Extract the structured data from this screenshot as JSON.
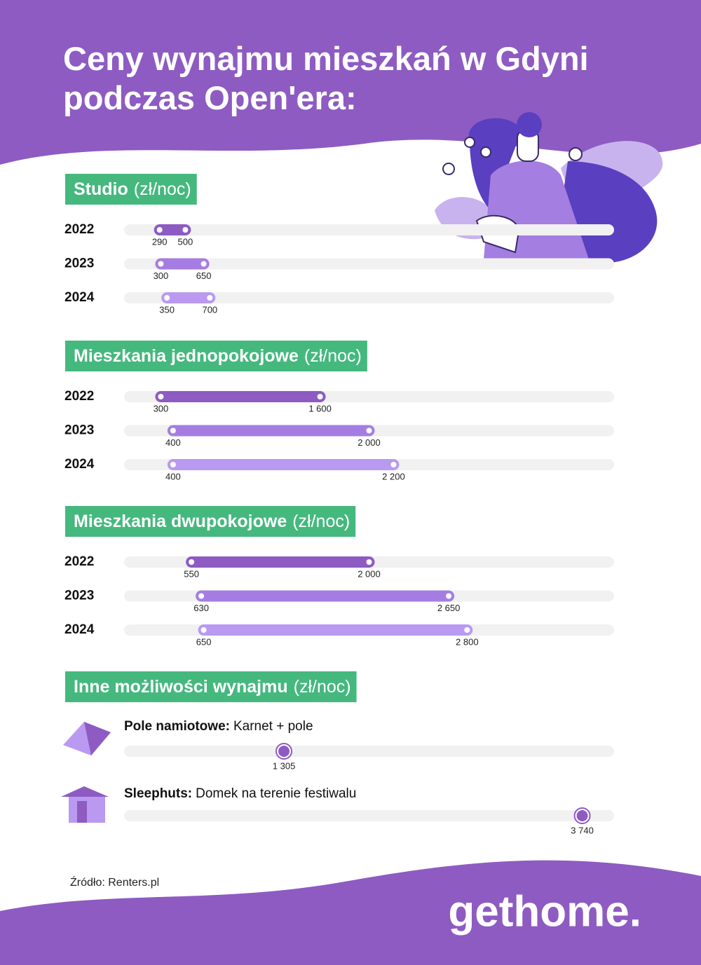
{
  "title": "Ceny wynajmu mieszkań w Gdyni podczas Open'era:",
  "xlim": [
    0,
    4000
  ],
  "year_colors": {
    "2022": "#8e5bc2",
    "2023": "#a57de2",
    "2024": "#b99af0"
  },
  "sections": [
    {
      "heading": "Studio",
      "unit": "(zł/noc)",
      "rows": [
        {
          "year": "2022",
          "values": [
            290,
            500
          ]
        },
        {
          "year": "2023",
          "values": [
            300,
            650
          ]
        },
        {
          "year": "2024",
          "values": [
            350,
            700
          ]
        }
      ]
    },
    {
      "heading": "Mieszkania jednopokojowe",
      "unit": "(zł/noc)",
      "rows": [
        {
          "year": "2022",
          "values": [
            300,
            1600
          ],
          "value_labels": [
            "300",
            "1 600"
          ]
        },
        {
          "year": "2023",
          "values": [
            400,
            2000
          ],
          "value_labels": [
            "400",
            "2 000"
          ]
        },
        {
          "year": "2024",
          "values": [
            400,
            2200
          ],
          "value_labels": [
            "400",
            "2 200"
          ]
        }
      ]
    },
    {
      "heading": "Mieszkania dwupokojowe",
      "unit": "(zł/noc)",
      "rows": [
        {
          "year": "2022",
          "values": [
            550,
            2000
          ],
          "value_labels": [
            "550",
            "2 000"
          ]
        },
        {
          "year": "2023",
          "values": [
            630,
            2650
          ],
          "value_labels": [
            "630",
            "2 650"
          ]
        },
        {
          "year": "2024",
          "values": [
            650,
            2800
          ],
          "value_labels": [
            "650",
            "2 800"
          ]
        }
      ]
    }
  ],
  "other": {
    "heading": "Inne możliwości wynajmu",
    "unit": "(zł/noc)",
    "color": "#8e5bc2",
    "items": [
      {
        "name": "Pole namiotowe:",
        "desc": "Karnet + pole",
        "value": 1305,
        "value_label": "1 305"
      },
      {
        "name": "Sleephuts:",
        "desc": "Domek na terenie festiwalu",
        "value": 3740,
        "value_label": "3 740"
      }
    ]
  },
  "source": "Źródło: Renters.pl",
  "logo": "gethome."
}
